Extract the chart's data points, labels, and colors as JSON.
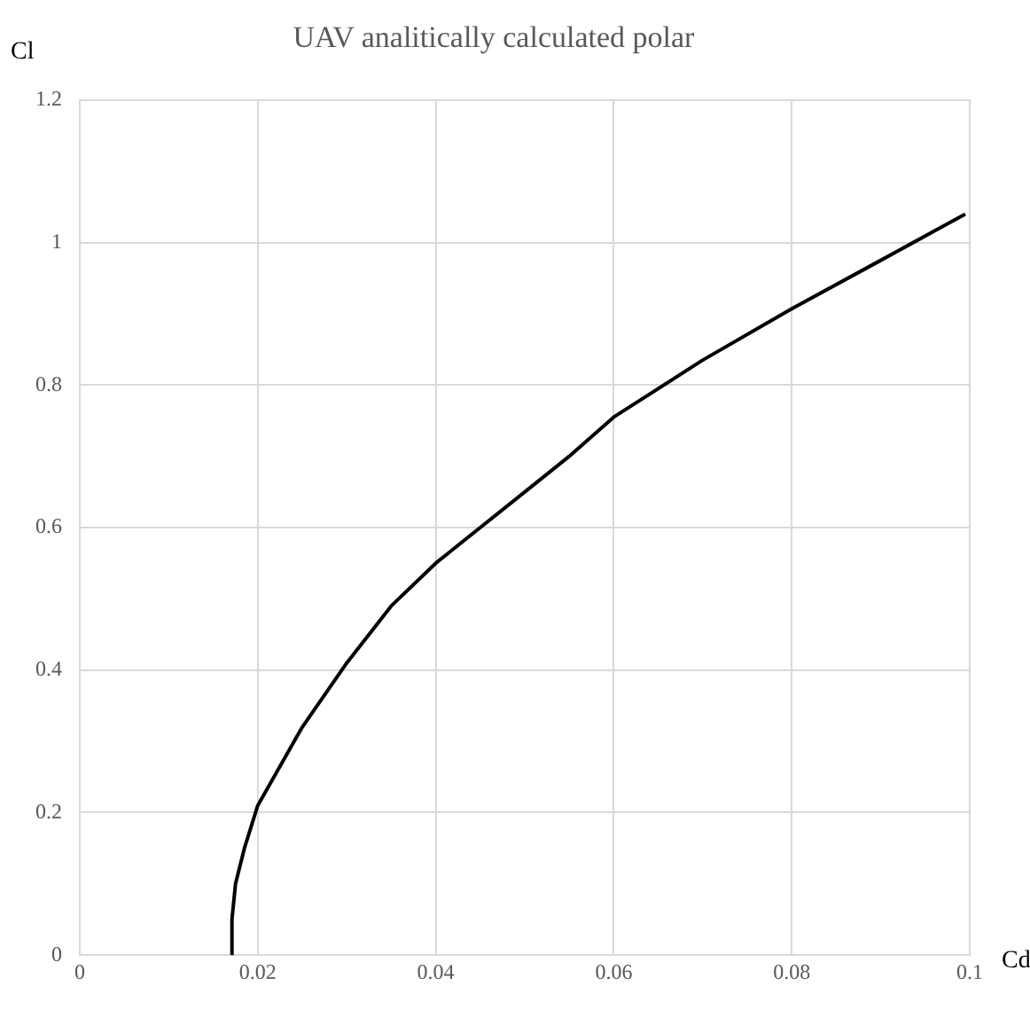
{
  "chart_data": {
    "type": "line",
    "title": "UAV analitically calculated polar",
    "xlabel": "Cd",
    "ylabel": "Cl",
    "xlim": [
      0,
      0.1
    ],
    "xticks": [
      0,
      0.02,
      0.04,
      0.06,
      0.08,
      0.1
    ],
    "ylim": [
      0,
      1.2
    ],
    "yticks": [
      0,
      0.2,
      0.4,
      0.6,
      0.8,
      1,
      1.2
    ],
    "grid": true,
    "legend": false,
    "marker": "none",
    "line_style": "solid",
    "series": [
      {
        "color": "#000000",
        "x": [
          0.017,
          0.0171,
          0.0175,
          0.0185,
          0.02,
          0.025,
          0.03,
          0.035,
          0.04,
          0.05,
          0.055,
          0.06,
          0.07,
          0.08,
          0.09,
          0.0995
        ],
        "values": [
          0,
          0.05,
          0.1,
          0.15,
          0.21,
          0.32,
          0.41,
          0.49,
          0.55,
          0.65,
          0.7,
          0.755,
          0.835,
          0.907,
          0.975,
          1.04
        ]
      }
    ]
  }
}
